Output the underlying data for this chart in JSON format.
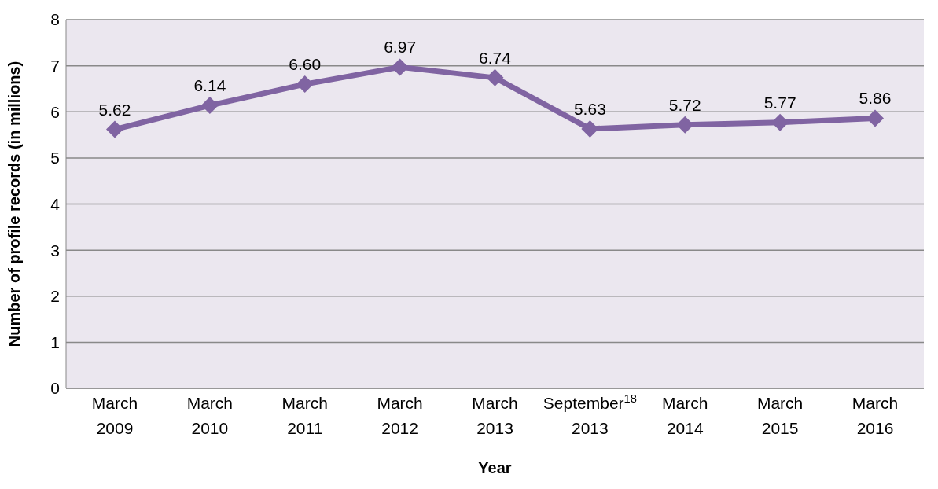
{
  "chart_data": {
    "type": "line",
    "xlabel": "Year",
    "ylabel": "Number of profile records (in millions)",
    "categories": [
      "March 2009",
      "March 2010",
      "March 2011",
      "March 2012",
      "March 2013",
      "September$^{18}$ 2013",
      "March 2014",
      "March 2015",
      "March 2016"
    ],
    "series": [
      {
        "color": "#8064a2",
        "values": [
          5.62,
          6.14,
          6.6,
          6.97,
          6.74,
          5.63,
          5.72,
          5.77,
          5.86
        ],
        "value_labels": [
          "5.62",
          "6.14",
          "6.60",
          "6.97",
          "6.74",
          "5.63",
          "5.72",
          "5.77",
          "5.86"
        ]
      }
    ],
    "ylim": [
      0,
      8
    ],
    "yticks": [
      0,
      1,
      2,
      3,
      4,
      5,
      6,
      7,
      8
    ],
    "grid": "y",
    "marker": "diamond",
    "line_style": "solid"
  }
}
